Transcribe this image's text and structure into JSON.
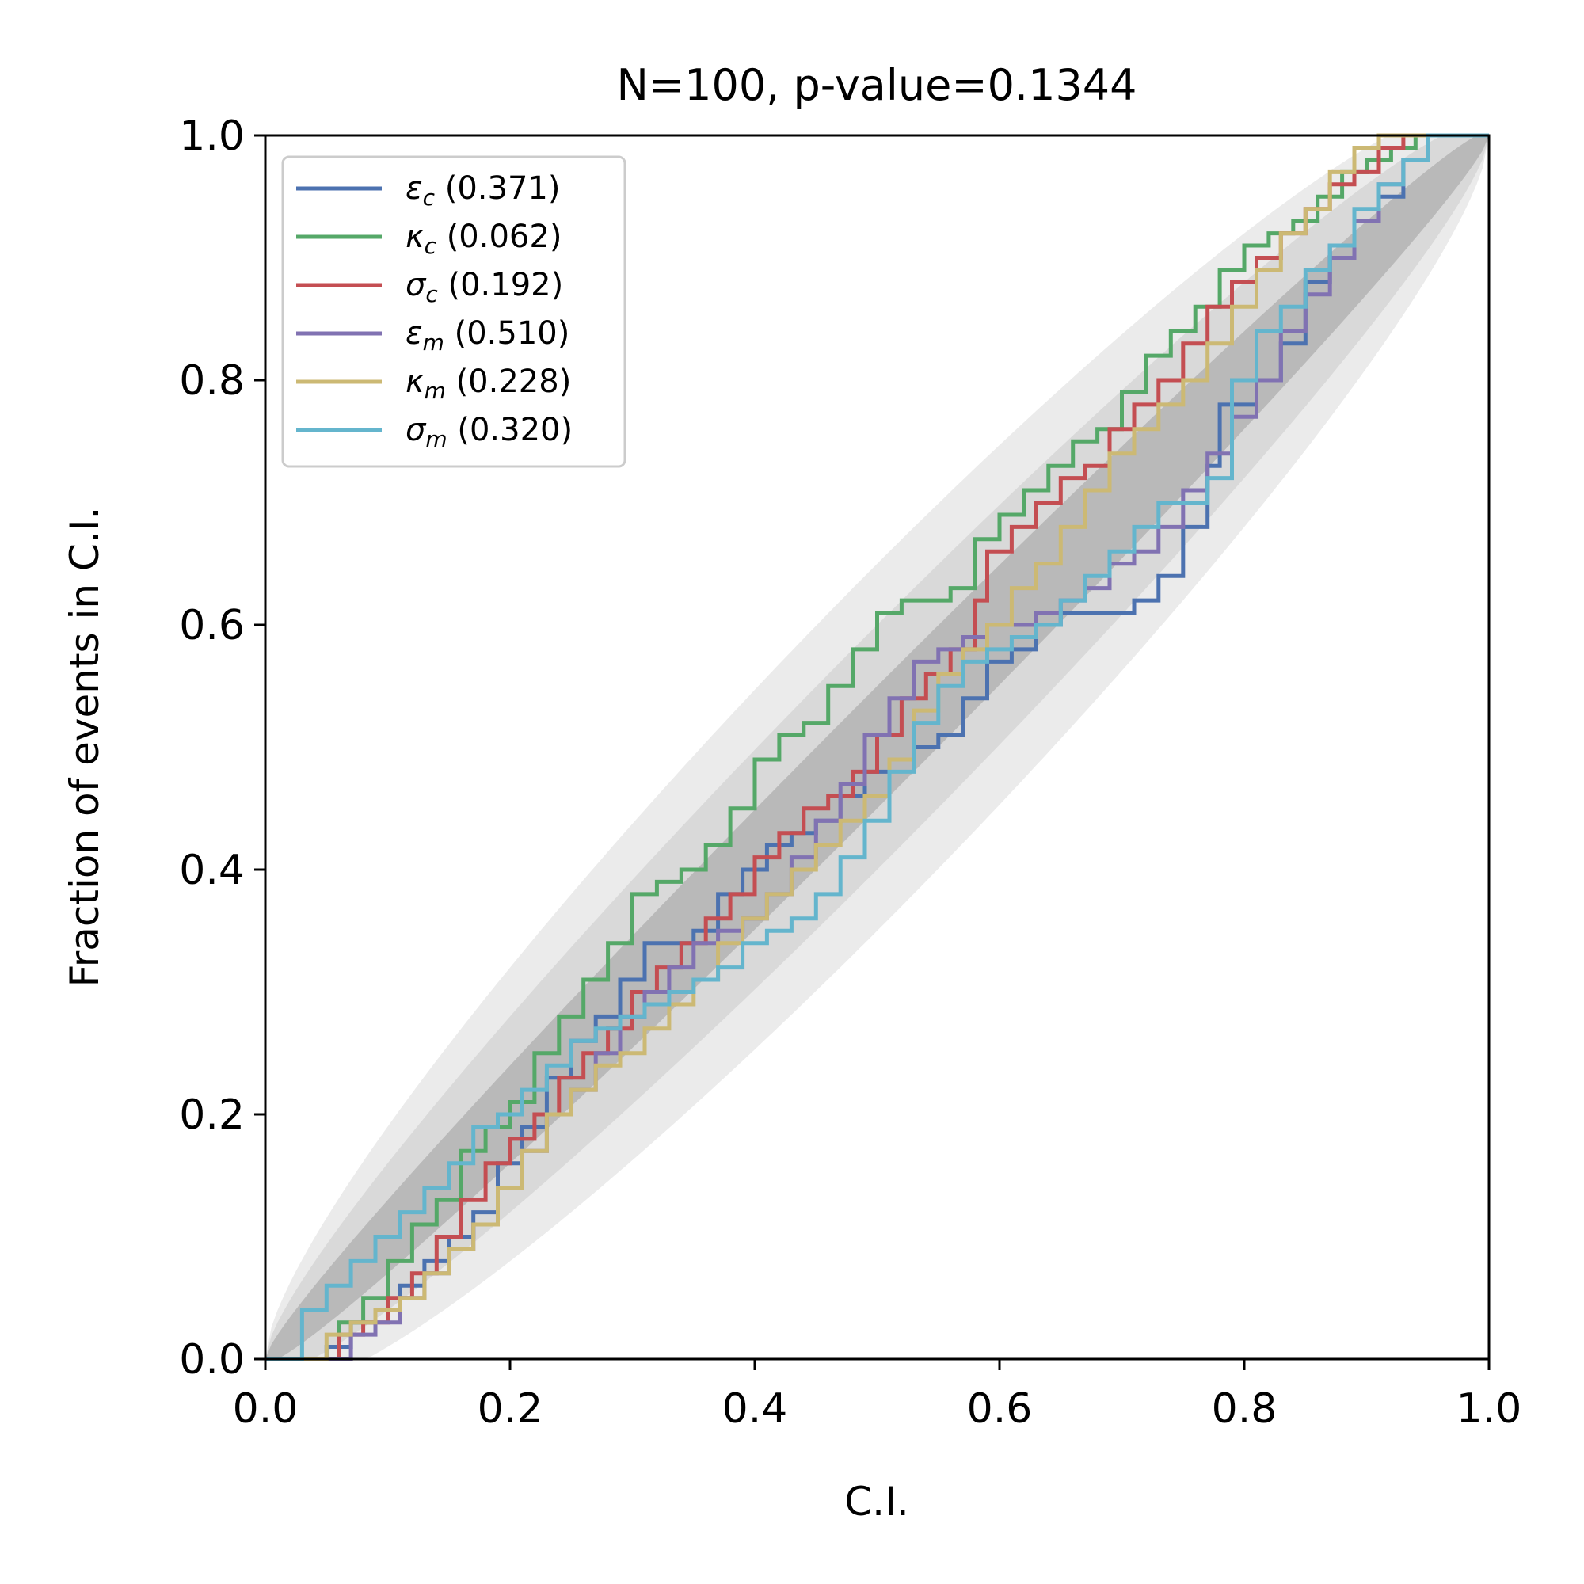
{
  "chart_data": {
    "type": "line",
    "title": "N=100, p-value=0.1344",
    "xlabel": "C.I.",
    "ylabel": "Fraction of events in C.I.",
    "xlim": [
      0,
      1
    ],
    "ylim": [
      0,
      1
    ],
    "xticks": [
      "0.0",
      "0.2",
      "0.4",
      "0.6",
      "0.8",
      "1.0"
    ],
    "yticks": [
      "0.0",
      "0.2",
      "0.4",
      "0.6",
      "0.8",
      "1.0"
    ],
    "grid": false,
    "legend_position": "upper-left",
    "confidence_bands": [
      {
        "level": "1-sigma",
        "color": "#b9b9b9"
      },
      {
        "level": "2-sigma",
        "color": "#d9d9d9"
      },
      {
        "level": "3-sigma",
        "color": "#ebebeb"
      }
    ],
    "series": [
      {
        "symbol": "ε",
        "subscript": "c",
        "pvalue": "(0.371)",
        "color": "#4c72b0",
        "points": [
          [
            0,
            0
          ],
          [
            0.03,
            0
          ],
          [
            0.05,
            0.01
          ],
          [
            0.07,
            0.03
          ],
          [
            0.09,
            0.04
          ],
          [
            0.11,
            0.06
          ],
          [
            0.13,
            0.08
          ],
          [
            0.15,
            0.1
          ],
          [
            0.17,
            0.12
          ],
          [
            0.19,
            0.16
          ],
          [
            0.21,
            0.19
          ],
          [
            0.23,
            0.23
          ],
          [
            0.25,
            0.26
          ],
          [
            0.27,
            0.28
          ],
          [
            0.29,
            0.31
          ],
          [
            0.31,
            0.34
          ],
          [
            0.33,
            0.34
          ],
          [
            0.35,
            0.35
          ],
          [
            0.37,
            0.38
          ],
          [
            0.39,
            0.4
          ],
          [
            0.41,
            0.42
          ],
          [
            0.43,
            0.43
          ],
          [
            0.45,
            0.44
          ],
          [
            0.47,
            0.46
          ],
          [
            0.49,
            0.48
          ],
          [
            0.51,
            0.49
          ],
          [
            0.53,
            0.5
          ],
          [
            0.55,
            0.51
          ],
          [
            0.57,
            0.54
          ],
          [
            0.59,
            0.57
          ],
          [
            0.61,
            0.58
          ],
          [
            0.63,
            0.6
          ],
          [
            0.65,
            0.61
          ],
          [
            0.67,
            0.61
          ],
          [
            0.69,
            0.61
          ],
          [
            0.71,
            0.62
          ],
          [
            0.73,
            0.64
          ],
          [
            0.75,
            0.68
          ],
          [
            0.77,
            0.73
          ],
          [
            0.78,
            0.78
          ],
          [
            0.79,
            0.78
          ],
          [
            0.81,
            0.8
          ],
          [
            0.83,
            0.83
          ],
          [
            0.85,
            0.88
          ],
          [
            0.87,
            0.91
          ],
          [
            0.89,
            0.93
          ],
          [
            0.91,
            0.95
          ],
          [
            0.93,
            0.98
          ],
          [
            0.95,
            1.0
          ],
          [
            1.0,
            1.0
          ]
        ]
      },
      {
        "symbol": "κ",
        "subscript": "c",
        "pvalue": "(0.062)",
        "color": "#55a868",
        "points": [
          [
            0,
            0
          ],
          [
            0.04,
            0
          ],
          [
            0.06,
            0.03
          ],
          [
            0.08,
            0.05
          ],
          [
            0.1,
            0.08
          ],
          [
            0.12,
            0.11
          ],
          [
            0.14,
            0.13
          ],
          [
            0.16,
            0.17
          ],
          [
            0.18,
            0.19
          ],
          [
            0.2,
            0.21
          ],
          [
            0.22,
            0.25
          ],
          [
            0.24,
            0.28
          ],
          [
            0.26,
            0.31
          ],
          [
            0.28,
            0.34
          ],
          [
            0.3,
            0.38
          ],
          [
            0.32,
            0.39
          ],
          [
            0.34,
            0.4
          ],
          [
            0.36,
            0.42
          ],
          [
            0.38,
            0.45
          ],
          [
            0.4,
            0.49
          ],
          [
            0.42,
            0.51
          ],
          [
            0.44,
            0.52
          ],
          [
            0.46,
            0.55
          ],
          [
            0.48,
            0.58
          ],
          [
            0.5,
            0.61
          ],
          [
            0.52,
            0.62
          ],
          [
            0.54,
            0.62
          ],
          [
            0.56,
            0.63
          ],
          [
            0.58,
            0.67
          ],
          [
            0.6,
            0.69
          ],
          [
            0.62,
            0.71
          ],
          [
            0.64,
            0.73
          ],
          [
            0.66,
            0.75
          ],
          [
            0.68,
            0.76
          ],
          [
            0.7,
            0.79
          ],
          [
            0.72,
            0.82
          ],
          [
            0.74,
            0.84
          ],
          [
            0.76,
            0.86
          ],
          [
            0.78,
            0.89
          ],
          [
            0.8,
            0.91
          ],
          [
            0.82,
            0.92
          ],
          [
            0.84,
            0.93
          ],
          [
            0.86,
            0.95
          ],
          [
            0.88,
            0.97
          ],
          [
            0.9,
            0.98
          ],
          [
            0.92,
            0.99
          ],
          [
            0.94,
            1.0
          ],
          [
            1.0,
            1.0
          ]
        ]
      },
      {
        "symbol": "σ",
        "subscript": "c",
        "pvalue": "(0.192)",
        "color": "#c44e52",
        "points": [
          [
            0,
            0
          ],
          [
            0.04,
            0
          ],
          [
            0.06,
            0.02
          ],
          [
            0.08,
            0.03
          ],
          [
            0.1,
            0.05
          ],
          [
            0.12,
            0.07
          ],
          [
            0.14,
            0.1
          ],
          [
            0.16,
            0.13
          ],
          [
            0.18,
            0.16
          ],
          [
            0.2,
            0.18
          ],
          [
            0.22,
            0.2
          ],
          [
            0.24,
            0.23
          ],
          [
            0.26,
            0.25
          ],
          [
            0.28,
            0.27
          ],
          [
            0.3,
            0.3
          ],
          [
            0.32,
            0.32
          ],
          [
            0.34,
            0.34
          ],
          [
            0.36,
            0.36
          ],
          [
            0.38,
            0.38
          ],
          [
            0.4,
            0.41
          ],
          [
            0.42,
            0.43
          ],
          [
            0.44,
            0.45
          ],
          [
            0.46,
            0.46
          ],
          [
            0.48,
            0.48
          ],
          [
            0.5,
            0.51
          ],
          [
            0.52,
            0.54
          ],
          [
            0.54,
            0.56
          ],
          [
            0.56,
            0.58
          ],
          [
            0.58,
            0.62
          ],
          [
            0.59,
            0.66
          ],
          [
            0.61,
            0.68
          ],
          [
            0.63,
            0.7
          ],
          [
            0.65,
            0.72
          ],
          [
            0.67,
            0.73
          ],
          [
            0.69,
            0.76
          ],
          [
            0.71,
            0.78
          ],
          [
            0.73,
            0.8
          ],
          [
            0.75,
            0.83
          ],
          [
            0.77,
            0.86
          ],
          [
            0.79,
            0.88
          ],
          [
            0.81,
            0.9
          ],
          [
            0.83,
            0.92
          ],
          [
            0.85,
            0.94
          ],
          [
            0.87,
            0.96
          ],
          [
            0.89,
            0.97
          ],
          [
            0.91,
            0.99
          ],
          [
            0.93,
            1.0
          ],
          [
            1.0,
            1.0
          ]
        ]
      },
      {
        "symbol": "ε",
        "subscript": "m",
        "pvalue": "(0.510)",
        "color": "#8172b2",
        "points": [
          [
            0,
            0
          ],
          [
            0.05,
            0
          ],
          [
            0.07,
            0.02
          ],
          [
            0.09,
            0.03
          ],
          [
            0.11,
            0.05
          ],
          [
            0.13,
            0.07
          ],
          [
            0.15,
            0.09
          ],
          [
            0.17,
            0.11
          ],
          [
            0.19,
            0.14
          ],
          [
            0.21,
            0.17
          ],
          [
            0.23,
            0.2
          ],
          [
            0.25,
            0.22
          ],
          [
            0.27,
            0.25
          ],
          [
            0.29,
            0.28
          ],
          [
            0.31,
            0.3
          ],
          [
            0.33,
            0.32
          ],
          [
            0.35,
            0.34
          ],
          [
            0.37,
            0.35
          ],
          [
            0.39,
            0.36
          ],
          [
            0.41,
            0.38
          ],
          [
            0.43,
            0.41
          ],
          [
            0.45,
            0.44
          ],
          [
            0.47,
            0.47
          ],
          [
            0.49,
            0.51
          ],
          [
            0.51,
            0.54
          ],
          [
            0.53,
            0.57
          ],
          [
            0.55,
            0.58
          ],
          [
            0.57,
            0.59
          ],
          [
            0.59,
            0.6
          ],
          [
            0.61,
            0.6
          ],
          [
            0.63,
            0.61
          ],
          [
            0.65,
            0.62
          ],
          [
            0.67,
            0.63
          ],
          [
            0.69,
            0.65
          ],
          [
            0.71,
            0.66
          ],
          [
            0.73,
            0.68
          ],
          [
            0.75,
            0.71
          ],
          [
            0.77,
            0.74
          ],
          [
            0.79,
            0.77
          ],
          [
            0.81,
            0.8
          ],
          [
            0.83,
            0.84
          ],
          [
            0.85,
            0.87
          ],
          [
            0.87,
            0.9
          ],
          [
            0.89,
            0.93
          ],
          [
            0.91,
            0.96
          ],
          [
            0.93,
            0.98
          ],
          [
            0.95,
            1.0
          ],
          [
            1.0,
            1.0
          ]
        ]
      },
      {
        "symbol": "κ",
        "subscript": "m",
        "pvalue": "(0.228)",
        "color": "#ccb974",
        "points": [
          [
            0,
            0
          ],
          [
            0.03,
            0
          ],
          [
            0.05,
            0.02
          ],
          [
            0.07,
            0.03
          ],
          [
            0.09,
            0.04
          ],
          [
            0.11,
            0.05
          ],
          [
            0.13,
            0.07
          ],
          [
            0.15,
            0.09
          ],
          [
            0.17,
            0.11
          ],
          [
            0.19,
            0.14
          ],
          [
            0.21,
            0.17
          ],
          [
            0.23,
            0.2
          ],
          [
            0.25,
            0.22
          ],
          [
            0.27,
            0.24
          ],
          [
            0.29,
            0.25
          ],
          [
            0.31,
            0.27
          ],
          [
            0.33,
            0.29
          ],
          [
            0.35,
            0.31
          ],
          [
            0.37,
            0.34
          ],
          [
            0.39,
            0.36
          ],
          [
            0.41,
            0.38
          ],
          [
            0.43,
            0.4
          ],
          [
            0.45,
            0.42
          ],
          [
            0.47,
            0.44
          ],
          [
            0.49,
            0.46
          ],
          [
            0.51,
            0.49
          ],
          [
            0.53,
            0.53
          ],
          [
            0.55,
            0.56
          ],
          [
            0.57,
            0.58
          ],
          [
            0.59,
            0.6
          ],
          [
            0.61,
            0.63
          ],
          [
            0.63,
            0.65
          ],
          [
            0.65,
            0.68
          ],
          [
            0.67,
            0.71
          ],
          [
            0.69,
            0.74
          ],
          [
            0.71,
            0.76
          ],
          [
            0.73,
            0.78
          ],
          [
            0.75,
            0.8
          ],
          [
            0.77,
            0.83
          ],
          [
            0.79,
            0.86
          ],
          [
            0.81,
            0.89
          ],
          [
            0.83,
            0.92
          ],
          [
            0.85,
            0.94
          ],
          [
            0.87,
            0.97
          ],
          [
            0.89,
            0.99
          ],
          [
            0.91,
            1.0
          ],
          [
            1.0,
            1.0
          ]
        ]
      },
      {
        "symbol": "σ",
        "subscript": "m",
        "pvalue": "(0.320)",
        "color": "#64b5cd",
        "points": [
          [
            0,
            0
          ],
          [
            0.02,
            0
          ],
          [
            0.03,
            0.04
          ],
          [
            0.05,
            0.06
          ],
          [
            0.07,
            0.08
          ],
          [
            0.09,
            0.1
          ],
          [
            0.11,
            0.12
          ],
          [
            0.13,
            0.14
          ],
          [
            0.15,
            0.16
          ],
          [
            0.17,
            0.19
          ],
          [
            0.19,
            0.2
          ],
          [
            0.21,
            0.22
          ],
          [
            0.23,
            0.24
          ],
          [
            0.25,
            0.26
          ],
          [
            0.27,
            0.27
          ],
          [
            0.29,
            0.28
          ],
          [
            0.31,
            0.29
          ],
          [
            0.33,
            0.3
          ],
          [
            0.35,
            0.31
          ],
          [
            0.37,
            0.32
          ],
          [
            0.39,
            0.34
          ],
          [
            0.41,
            0.35
          ],
          [
            0.43,
            0.36
          ],
          [
            0.45,
            0.38
          ],
          [
            0.47,
            0.41
          ],
          [
            0.49,
            0.44
          ],
          [
            0.51,
            0.48
          ],
          [
            0.53,
            0.52
          ],
          [
            0.55,
            0.55
          ],
          [
            0.57,
            0.57
          ],
          [
            0.59,
            0.58
          ],
          [
            0.61,
            0.59
          ],
          [
            0.63,
            0.6
          ],
          [
            0.65,
            0.62
          ],
          [
            0.67,
            0.64
          ],
          [
            0.69,
            0.66
          ],
          [
            0.71,
            0.68
          ],
          [
            0.73,
            0.7
          ],
          [
            0.75,
            0.7
          ],
          [
            0.77,
            0.72
          ],
          [
            0.79,
            0.8
          ],
          [
            0.81,
            0.84
          ],
          [
            0.83,
            0.86
          ],
          [
            0.85,
            0.89
          ],
          [
            0.87,
            0.91
          ],
          [
            0.89,
            0.94
          ],
          [
            0.91,
            0.96
          ],
          [
            0.93,
            0.98
          ],
          [
            0.95,
            1.0
          ],
          [
            1.0,
            1.0
          ]
        ]
      }
    ]
  }
}
